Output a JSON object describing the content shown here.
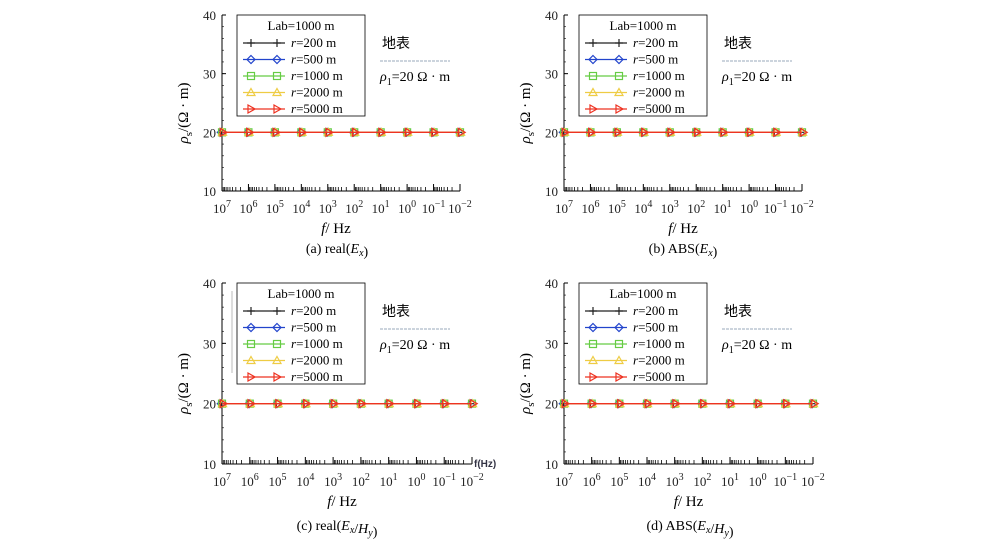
{
  "legend": {
    "header": "Lab=1000 m",
    "entries": [
      "r=200 m",
      "r=500 m",
      "r=1000 m",
      "r=2000 m",
      "r=5000 m"
    ]
  },
  "annotation": {
    "surface": "地表",
    "rho": "ρ1=20 Ω · m"
  },
  "axes": {
    "ylabel": "ρs/(Ω · m)",
    "xlabel": "f/ Hz",
    "ytick_labels": [
      "40",
      "30",
      "20",
      "10"
    ],
    "xtick_labels": [
      "10^7",
      "10^6",
      "10^5",
      "10^4",
      "10^3",
      "10^2",
      "10^1",
      "10^0",
      "10^-1",
      "10^-2"
    ]
  },
  "extra_label": "f(Hz)",
  "colors": {
    "r200": "#222222",
    "r500": "#2244cc",
    "r1000": "#66cc44",
    "r2000": "#eecc44",
    "r5000": "#ee3322"
  },
  "chart_data": [
    {
      "type": "line",
      "caption": "(a) real(Ex)",
      "x": [
        10000000,
        1000000,
        100000,
        10000,
        1000,
        100,
        10,
        1,
        0.1,
        0.01
      ],
      "xscale": "log",
      "xlim": [
        10000000,
        0.01
      ],
      "ylim": [
        10,
        40
      ],
      "xlabel": "f/ Hz",
      "ylabel": "ρs/(Ω · m)",
      "series": [
        {
          "name": "r=200 m",
          "values": [
            20,
            20,
            20,
            20,
            20,
            20,
            20,
            20,
            20,
            20
          ]
        },
        {
          "name": "r=500 m",
          "values": [
            20,
            20,
            20,
            20,
            20,
            20,
            20,
            20,
            20,
            20
          ]
        },
        {
          "name": "r=1000 m",
          "values": [
            20,
            20,
            20,
            20,
            20,
            20,
            20,
            20,
            20,
            20
          ]
        },
        {
          "name": "r=2000 m",
          "values": [
            20,
            20,
            20,
            20,
            20,
            20,
            20,
            20,
            20,
            20
          ]
        },
        {
          "name": "r=5000 m",
          "values": [
            20,
            20,
            20,
            20,
            20,
            20,
            20,
            20,
            20,
            20
          ]
        }
      ]
    },
    {
      "type": "line",
      "caption": "(b) ABS(Ex)",
      "x": [
        10000000,
        1000000,
        100000,
        10000,
        1000,
        100,
        10,
        1,
        0.1,
        0.01
      ],
      "xscale": "log",
      "xlim": [
        10000000,
        0.01
      ],
      "ylim": [
        10,
        40
      ],
      "xlabel": "f/ Hz",
      "ylabel": "ρs/(Ω · m)",
      "series": [
        {
          "name": "r=200 m",
          "values": [
            20,
            20,
            20,
            20,
            20,
            20,
            20,
            20,
            20,
            20
          ]
        },
        {
          "name": "r=500 m",
          "values": [
            20,
            20,
            20,
            20,
            20,
            20,
            20,
            20,
            20,
            20
          ]
        },
        {
          "name": "r=1000 m",
          "values": [
            20,
            20,
            20,
            20,
            20,
            20,
            20,
            20,
            20,
            20
          ]
        },
        {
          "name": "r=2000 m",
          "values": [
            20,
            20,
            20,
            20,
            20,
            20,
            20,
            20,
            20,
            20
          ]
        },
        {
          "name": "r=5000 m",
          "values": [
            20,
            20,
            20,
            20,
            20,
            20,
            20,
            20,
            20,
            20
          ]
        }
      ]
    },
    {
      "type": "line",
      "caption": "(c) real(Ex/Hy)",
      "x": [
        10000000,
        1000000,
        100000,
        10000,
        1000,
        100,
        10,
        1,
        0.1,
        0.01
      ],
      "xscale": "log",
      "xlim": [
        10000000,
        0.01
      ],
      "ylim": [
        10,
        40
      ],
      "xlabel": "f/ Hz",
      "ylabel": "ρs/(Ω · m)",
      "series": [
        {
          "name": "r=200 m",
          "values": [
            20,
            20,
            20,
            20,
            20,
            20,
            20,
            20,
            20,
            20
          ]
        },
        {
          "name": "r=500 m",
          "values": [
            20,
            20,
            20,
            20,
            20,
            20,
            20,
            20,
            20,
            20
          ]
        },
        {
          "name": "r=1000 m",
          "values": [
            20,
            20,
            20,
            20,
            20,
            20,
            20,
            20,
            20,
            20
          ]
        },
        {
          "name": "r=2000 m",
          "values": [
            20,
            20,
            20,
            20,
            20,
            20,
            20,
            20,
            20,
            20
          ]
        },
        {
          "name": "r=5000 m",
          "values": [
            20,
            20,
            20,
            20,
            20,
            20,
            20,
            20,
            20,
            20
          ]
        }
      ]
    },
    {
      "type": "line",
      "caption": "(d) ABS(Ex/Hy)",
      "x": [
        10000000,
        1000000,
        100000,
        10000,
        1000,
        100,
        10,
        1,
        0.1,
        0.01
      ],
      "xscale": "log",
      "xlim": [
        10000000,
        0.01
      ],
      "ylim": [
        10,
        40
      ],
      "xlabel": "f/ Hz",
      "ylabel": "ρs/(Ω · m)",
      "series": [
        {
          "name": "r=200 m",
          "values": [
            20,
            20,
            20,
            20,
            20,
            20,
            20,
            20,
            20,
            20
          ]
        },
        {
          "name": "r=500 m",
          "values": [
            20,
            20,
            20,
            20,
            20,
            20,
            20,
            20,
            20,
            20
          ]
        },
        {
          "name": "r=1000 m",
          "values": [
            20,
            20,
            20,
            20,
            20,
            20,
            20,
            20,
            20,
            20
          ]
        },
        {
          "name": "r=2000 m",
          "values": [
            20,
            20,
            20,
            20,
            20,
            20,
            20,
            20,
            20,
            20
          ]
        },
        {
          "name": "r=5000 m",
          "values": [
            20,
            20,
            20,
            20,
            20,
            20,
            20,
            20,
            20,
            20
          ]
        }
      ]
    }
  ]
}
